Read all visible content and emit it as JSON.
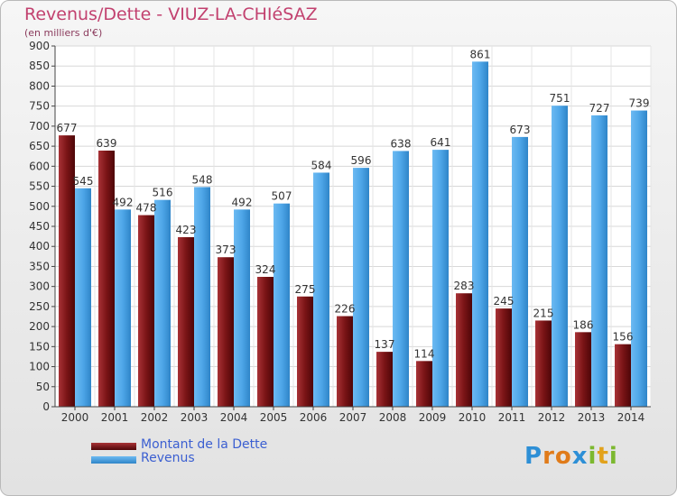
{
  "chart_data": {
    "type": "bar",
    "title": "Revenus/Dette - VIUZ-LA-CHIéSAZ",
    "subtitle": "(en milliers d'€)",
    "categories": [
      "2000",
      "2001",
      "2002",
      "2003",
      "2004",
      "2005",
      "2006",
      "2007",
      "2008",
      "2009",
      "2010",
      "2011",
      "2012",
      "2013",
      "2014"
    ],
    "series": [
      {
        "name": "Montant de la Dette",
        "color": "#7a1416",
        "values": [
          677,
          639,
          478,
          423,
          373,
          324,
          275,
          226,
          137,
          114,
          283,
          245,
          215,
          186,
          156
        ]
      },
      {
        "name": "Revenus",
        "color": "#4ea6e8",
        "values": [
          545,
          492,
          516,
          548,
          492,
          507,
          584,
          596,
          638,
          641,
          861,
          673,
          751,
          727,
          739
        ]
      }
    ],
    "ylim": [
      0,
      900
    ],
    "yticks": [
      0,
      50,
      100,
      150,
      200,
      250,
      300,
      350,
      400,
      450,
      500,
      550,
      600,
      650,
      700,
      750,
      800,
      850,
      900
    ],
    "grid": true,
    "legend": "bottom-left"
  },
  "legend": {
    "debt_label": "Montant de la Dette",
    "revenue_label": "Revenus"
  },
  "logo": {
    "letters": [
      "P",
      "r",
      "o",
      "x",
      "i",
      "t",
      "i"
    ],
    "colors": [
      "#2d8fd6",
      "#e07b1a",
      "#e07b1a",
      "#2d8fd6",
      "#7cb82f",
      "#e2a21c",
      "#7cb82f"
    ]
  }
}
